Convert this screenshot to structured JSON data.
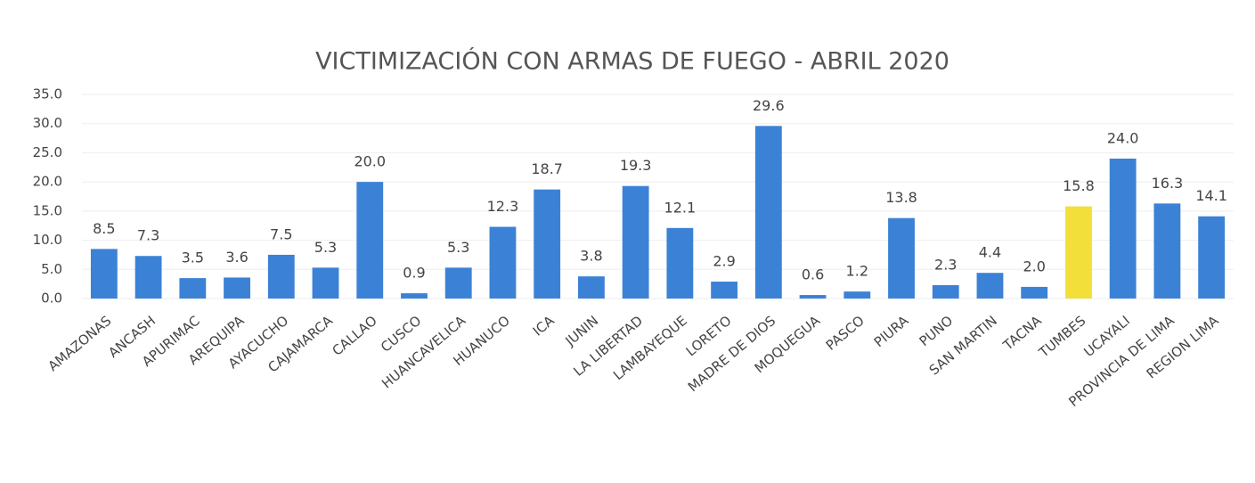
{
  "chart_data": {
    "type": "bar",
    "title": "VICTIMIZACIÓN CON ARMAS DE FUEGO - ABRIL 2020",
    "categories": [
      "AMAZONAS",
      "ANCASH",
      "APURIMAC",
      "AREQUIPA",
      "AYACUCHO",
      "CAJAMARCA",
      "CALLAO",
      "CUSCO",
      "HUANCAVELICA",
      "HUANUCO",
      "ICA",
      "JUNIN",
      "LA LIBERTAD",
      "LAMBAYEQUE",
      "LORETO",
      "MADRE DE DIOS",
      "MOQUEGUA",
      "PASCO",
      "PIURA",
      "PUNO",
      "SAN MARTIN",
      "TACNA",
      "TUMBES",
      "UCAYALI",
      "PROVINCIA DE LIMA",
      "REGION LIMA"
    ],
    "values": [
      8.5,
      7.3,
      3.5,
      3.6,
      7.5,
      5.3,
      20.0,
      0.9,
      5.3,
      12.3,
      18.7,
      3.8,
      19.3,
      12.1,
      2.9,
      29.6,
      0.6,
      1.2,
      13.8,
      2.3,
      4.4,
      2.0,
      15.8,
      24.0,
      16.3,
      14.1
    ],
    "value_labels": [
      "8.5",
      "7.3",
      "3.5",
      "3.6",
      "7.5",
      "5.3",
      "20.0",
      "0.9",
      "5.3",
      "12.3",
      "18.7",
      "3.8",
      "19.3",
      "12.1",
      "2.9",
      "29.6",
      "0.6",
      "1.2",
      "13.8",
      "2.3",
      "4.4",
      "2.0",
      "15.8",
      "24.0",
      "16.3",
      "14.1"
    ],
    "colors": [
      "#3b82d6",
      "#3b82d6",
      "#3b82d6",
      "#3b82d6",
      "#3b82d6",
      "#3b82d6",
      "#3b82d6",
      "#3b82d6",
      "#3b82d6",
      "#3b82d6",
      "#3b82d6",
      "#3b82d6",
      "#3b82d6",
      "#3b82d6",
      "#3b82d6",
      "#3b82d6",
      "#3b82d6",
      "#3b82d6",
      "#3b82d6",
      "#3b82d6",
      "#3b82d6",
      "#3b82d6",
      "#f2df3a",
      "#3b82d6",
      "#3b82d6",
      "#3b82d6"
    ],
    "ylim": [
      0,
      35
    ],
    "yticks": [
      {
        "value": 0,
        "label": "0.0"
      },
      {
        "value": 5,
        "label": "5.0"
      },
      {
        "value": 10,
        "label": "10.0"
      },
      {
        "value": 15,
        "label": "15.0"
      },
      {
        "value": 20,
        "label": "20.0"
      },
      {
        "value": 25,
        "label": "25.0"
      },
      {
        "value": 30,
        "label": "30.0"
      },
      {
        "value": 35,
        "label": "35.0"
      }
    ],
    "grid": true
  }
}
